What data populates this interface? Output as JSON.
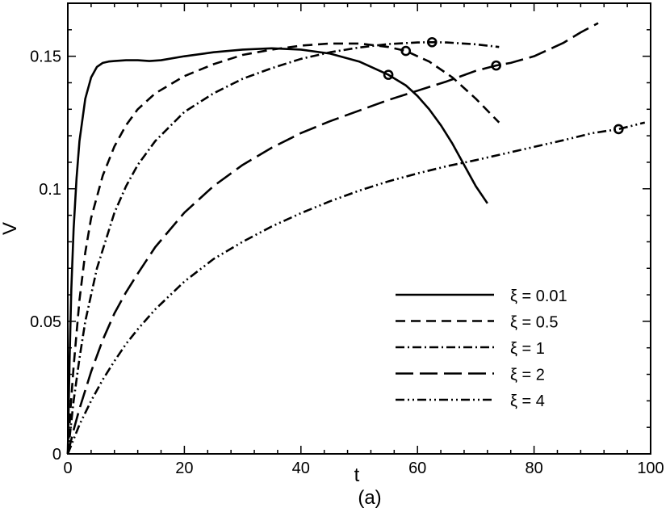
{
  "chart_data": {
    "type": "line",
    "caption": "(a)",
    "xlabel": "t",
    "ylabel": "V",
    "xlim": [
      0,
      100
    ],
    "ylim": [
      0,
      0.17
    ],
    "xticks": [
      0,
      20,
      40,
      60,
      80,
      100
    ],
    "xtick_labels": [
      "0",
      "20",
      "40",
      "60",
      "80",
      "100"
    ],
    "yticks": [
      0,
      0.05,
      0.1,
      0.15
    ],
    "ytick_labels": [
      "0",
      "0.05",
      "0.1",
      "0.15"
    ],
    "grid": false,
    "legend_position": "bottom-right",
    "series": [
      {
        "name": "ξ = 0.01",
        "dash": "solid",
        "x": [
          0,
          0.3,
          0.6,
          1,
          1.5,
          2,
          3,
          4,
          5,
          6,
          7,
          8,
          10,
          12,
          14,
          16,
          20,
          25,
          30,
          35,
          40,
          45,
          50,
          55,
          58,
          60,
          62,
          64,
          66,
          68,
          70,
          72
        ],
        "y": [
          0,
          0.035,
          0.062,
          0.085,
          0.104,
          0.118,
          0.134,
          0.142,
          0.146,
          0.1475,
          0.148,
          0.1482,
          0.1485,
          0.1485,
          0.1482,
          0.1485,
          0.15,
          0.1515,
          0.1525,
          0.153,
          0.1525,
          0.151,
          0.148,
          0.143,
          0.139,
          0.135,
          0.13,
          0.124,
          0.117,
          0.109,
          0.101,
          0.0945
        ],
        "markers": [
          [
            55,
            0.143
          ]
        ]
      },
      {
        "name": "ξ = 0.5",
        "dash": "dashed",
        "x": [
          0,
          0.5,
          1,
          2,
          3,
          4,
          6,
          8,
          10,
          12,
          15,
          20,
          25,
          30,
          35,
          40,
          45,
          50,
          55,
          58,
          62,
          66,
          70,
          74
        ],
        "y": [
          0,
          0.018,
          0.033,
          0.058,
          0.076,
          0.089,
          0.105,
          0.116,
          0.124,
          0.13,
          0.136,
          0.1425,
          0.147,
          0.1505,
          0.1525,
          0.154,
          0.1548,
          0.1548,
          0.1535,
          0.152,
          0.148,
          0.142,
          0.134,
          0.125
        ],
        "markers": [
          [
            58,
            0.152
          ]
        ]
      },
      {
        "name": "ξ = 1",
        "dash": "dash-dot",
        "x": [
          0,
          0.5,
          1,
          2,
          3,
          5,
          8,
          10,
          12,
          15,
          20,
          25,
          30,
          35,
          40,
          45,
          50,
          55,
          60,
          62.5,
          65,
          70,
          74
        ],
        "y": [
          0,
          0.01,
          0.02,
          0.036,
          0.05,
          0.07,
          0.091,
          0.101,
          0.109,
          0.118,
          0.129,
          0.136,
          0.1415,
          0.1455,
          0.149,
          0.1515,
          0.1533,
          0.1546,
          0.1552,
          0.1553,
          0.1552,
          0.1545,
          0.1535
        ],
        "markers": [
          [
            62.5,
            0.1553
          ]
        ]
      },
      {
        "name": "ξ = 2",
        "dash": "long-dash",
        "x": [
          0,
          1,
          2,
          4,
          6,
          8,
          10,
          12,
          15,
          20,
          25,
          30,
          35,
          40,
          45,
          50,
          55,
          60,
          65,
          70,
          73.5,
          76,
          80,
          85,
          88,
          91
        ],
        "y": [
          0,
          0.009,
          0.017,
          0.031,
          0.043,
          0.053,
          0.061,
          0.068,
          0.078,
          0.091,
          0.101,
          0.109,
          0.1155,
          0.121,
          0.1255,
          0.1295,
          0.1335,
          0.137,
          0.1405,
          0.1445,
          0.1465,
          0.1475,
          0.15,
          0.155,
          0.159,
          0.1625
        ],
        "markers": [
          [
            73.5,
            0.1465
          ]
        ]
      },
      {
        "name": "ξ = 4",
        "dash": "dash-dot-dot",
        "x": [
          0,
          2,
          4,
          6,
          8,
          10,
          12,
          15,
          20,
          25,
          30,
          35,
          40,
          45,
          50,
          55,
          60,
          65,
          70,
          75,
          80,
          85,
          90,
          94.5,
          99
        ],
        "y": [
          0,
          0.011,
          0.02,
          0.028,
          0.035,
          0.0415,
          0.047,
          0.0545,
          0.065,
          0.0735,
          0.08,
          0.0858,
          0.0908,
          0.0953,
          0.0993,
          0.1028,
          0.1058,
          0.1085,
          0.1108,
          0.1133,
          0.1158,
          0.1183,
          0.121,
          0.1225,
          0.125
        ],
        "markers": [
          [
            94.5,
            0.1225
          ]
        ]
      }
    ]
  }
}
